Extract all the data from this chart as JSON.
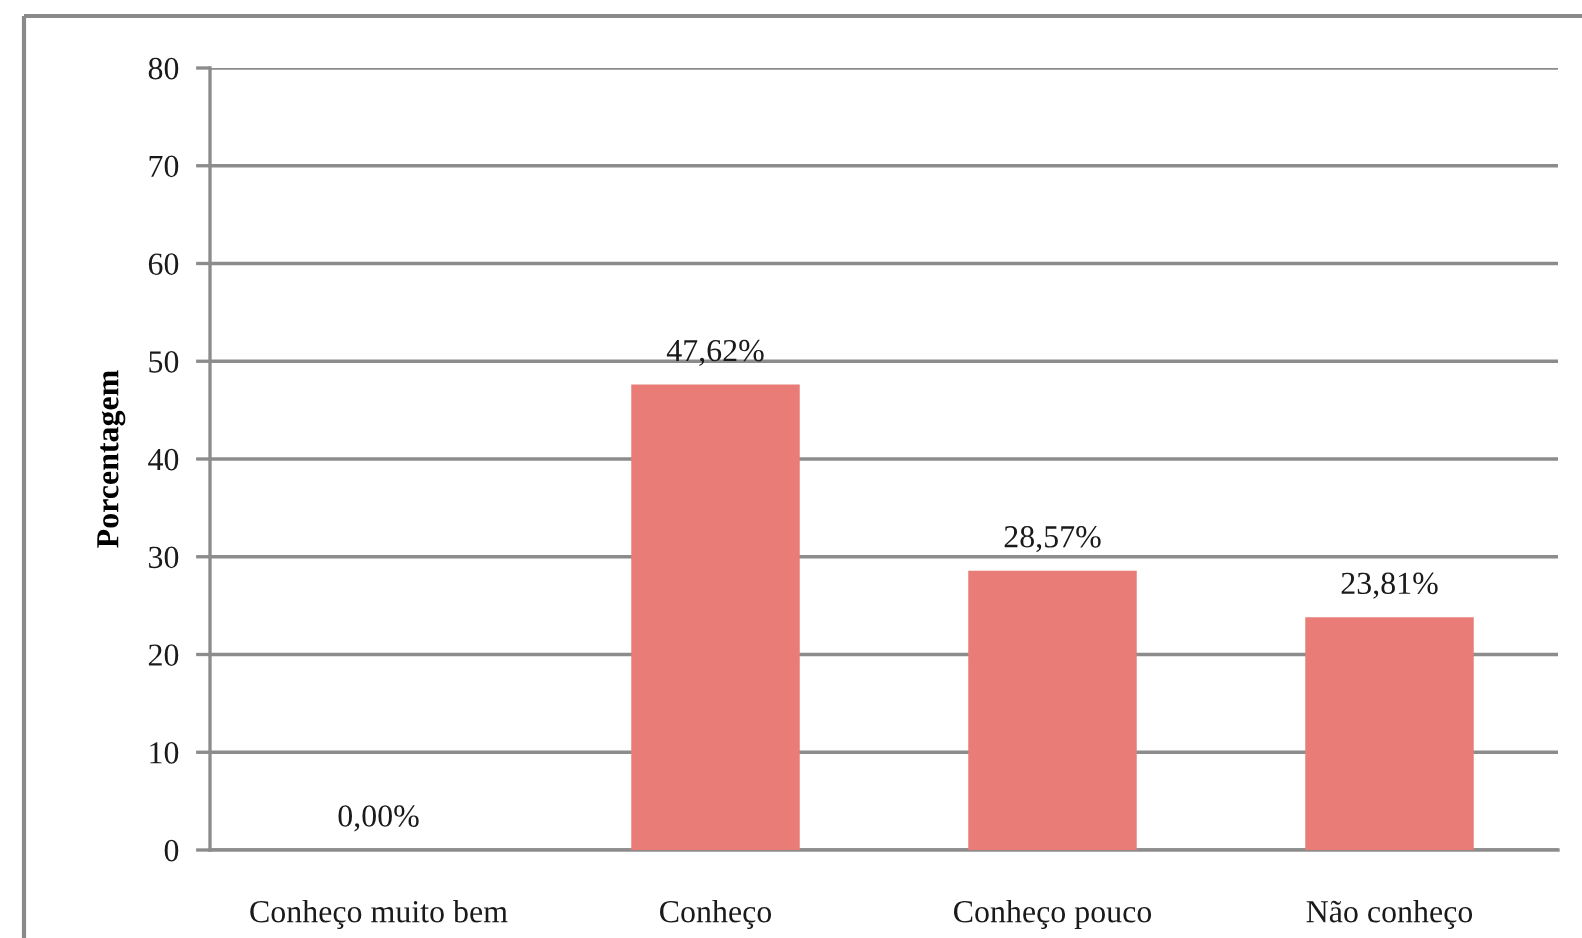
{
  "chart_data": {
    "type": "bar",
    "ylabel": "Porcentagem",
    "categories": [
      "Conheço muito bem",
      "Conheço",
      "Conheço pouco",
      "Não conheço"
    ],
    "values": [
      0,
      47.62,
      28.57,
      23.81
    ],
    "value_labels": [
      "0,00%",
      "47,62%",
      "28,57%",
      "23,81%"
    ],
    "color": "#e97c76",
    "ylim": [
      0,
      80
    ],
    "yticks": [
      0,
      10,
      20,
      30,
      40,
      50,
      60,
      70,
      80
    ],
    "grid": "y"
  }
}
